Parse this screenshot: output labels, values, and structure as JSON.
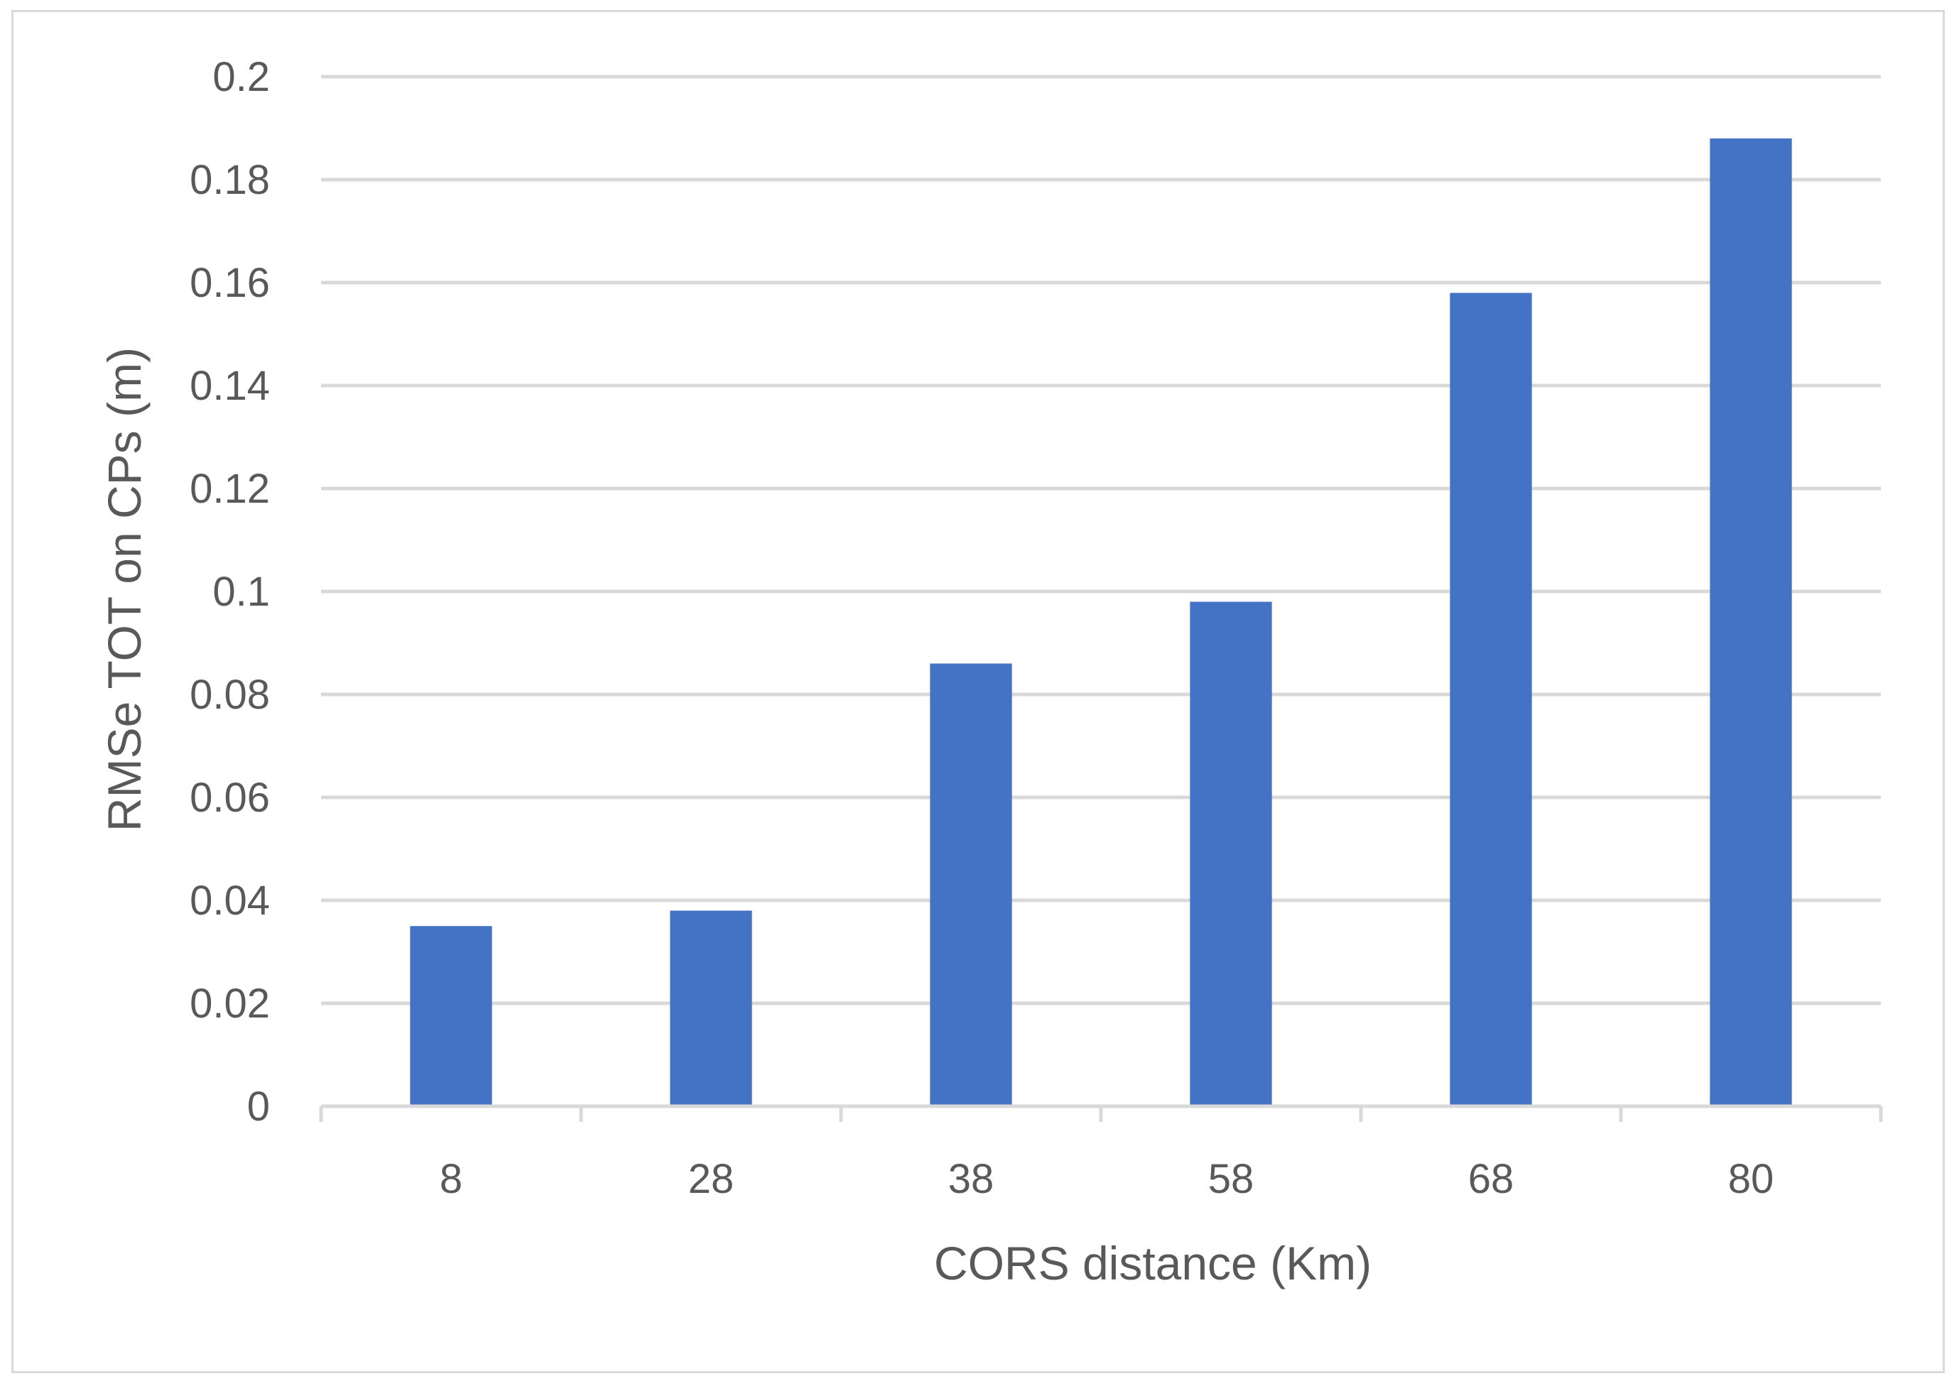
{
  "chart_data": {
    "type": "bar",
    "title": "",
    "xlabel": "CORS distance (Km)",
    "ylabel": "RMSe TOT  on CPs (m)",
    "categories": [
      "8",
      "28",
      "38",
      "58",
      "68",
      "80"
    ],
    "values": [
      0.035,
      0.038,
      0.086,
      0.098,
      0.158,
      0.188
    ],
    "ylim": [
      0,
      0.2
    ],
    "yticks": [
      "0",
      "0.02",
      "0.04",
      "0.06",
      "0.08",
      "0.1",
      "0.12",
      "0.14",
      "0.16",
      "0.18",
      "0.2"
    ],
    "grid": true,
    "legend": "none",
    "colors": {
      "bar": "#4472c4",
      "grid": "#d9d9d9",
      "text": "#595959",
      "frame": "#d9d9d9"
    }
  }
}
